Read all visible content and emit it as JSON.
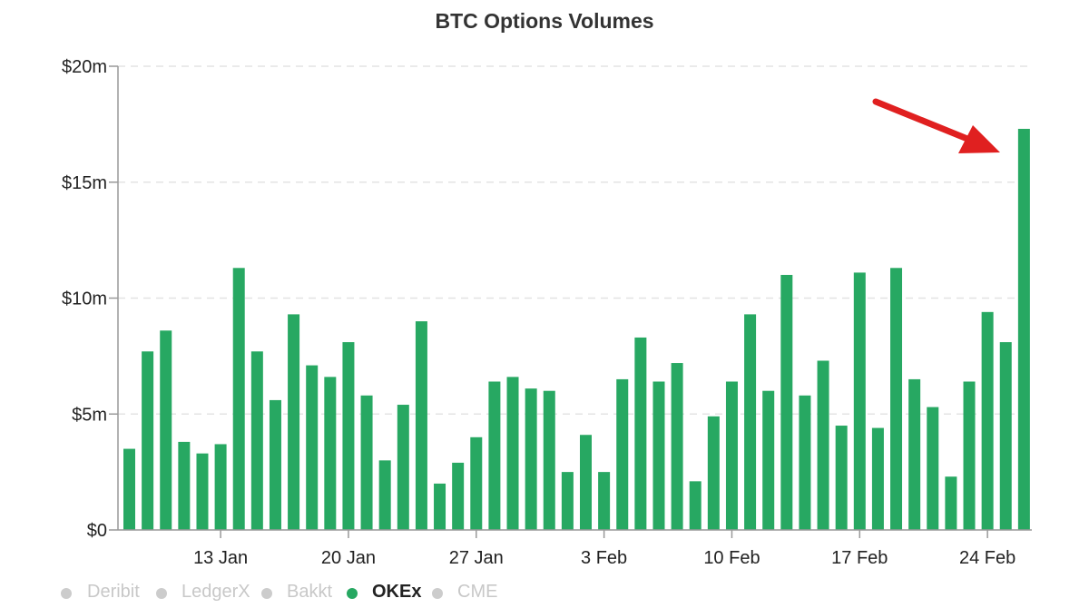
{
  "chart_data": {
    "type": "bar",
    "title": "BTC Options Volumes",
    "xlabel": "",
    "ylabel": "",
    "ylim": [
      0,
      20
    ],
    "y_unit": "million USD",
    "y_ticks": [
      {
        "value": 0,
        "label": "$0"
      },
      {
        "value": 5,
        "label": "$5m"
      },
      {
        "value": 10,
        "label": "$10m"
      },
      {
        "value": 15,
        "label": "$15m"
      },
      {
        "value": 20,
        "label": "$20m"
      }
    ],
    "x_tick_labels": [
      {
        "label": "13 Jan",
        "index": 5
      },
      {
        "label": "20 Jan",
        "index": 12
      },
      {
        "label": "27 Jan",
        "index": 19
      },
      {
        "label": "3 Feb",
        "index": 26
      },
      {
        "label": "10 Feb",
        "index": 33
      },
      {
        "label": "17 Feb",
        "index": 40
      },
      {
        "label": "24 Feb",
        "index": 47
      }
    ],
    "grid": true,
    "legend_position": "bottom-left",
    "series": [
      {
        "name": "OKEx",
        "color": "#27a862",
        "values": [
          3.5,
          7.7,
          8.6,
          3.8,
          3.3,
          3.7,
          11.3,
          7.7,
          5.6,
          9.3,
          7.1,
          6.6,
          8.1,
          5.8,
          3.0,
          5.4,
          9.0,
          2.0,
          2.9,
          4.0,
          6.4,
          6.6,
          6.1,
          6.0,
          2.5,
          4.1,
          2.5,
          6.5,
          8.3,
          6.4,
          7.2,
          2.1,
          4.9,
          6.4,
          9.3,
          6.0,
          11.0,
          5.8,
          7.3,
          4.5,
          11.1,
          4.4,
          11.3,
          6.5,
          5.3,
          2.3,
          6.4,
          9.4,
          8.1,
          17.3
        ]
      }
    ],
    "legend": [
      {
        "name": "Deribit",
        "active": false,
        "color": "#cccccc"
      },
      {
        "name": "LedgerX",
        "active": false,
        "color": "#cccccc"
      },
      {
        "name": "Bakkt",
        "active": false,
        "color": "#cccccc"
      },
      {
        "name": "OKEx",
        "active": true,
        "color": "#27a862"
      },
      {
        "name": "CME",
        "active": false,
        "color": "#cccccc"
      }
    ],
    "annotation": {
      "type": "arrow",
      "color": "#e02020",
      "points_to_index": 49
    }
  }
}
